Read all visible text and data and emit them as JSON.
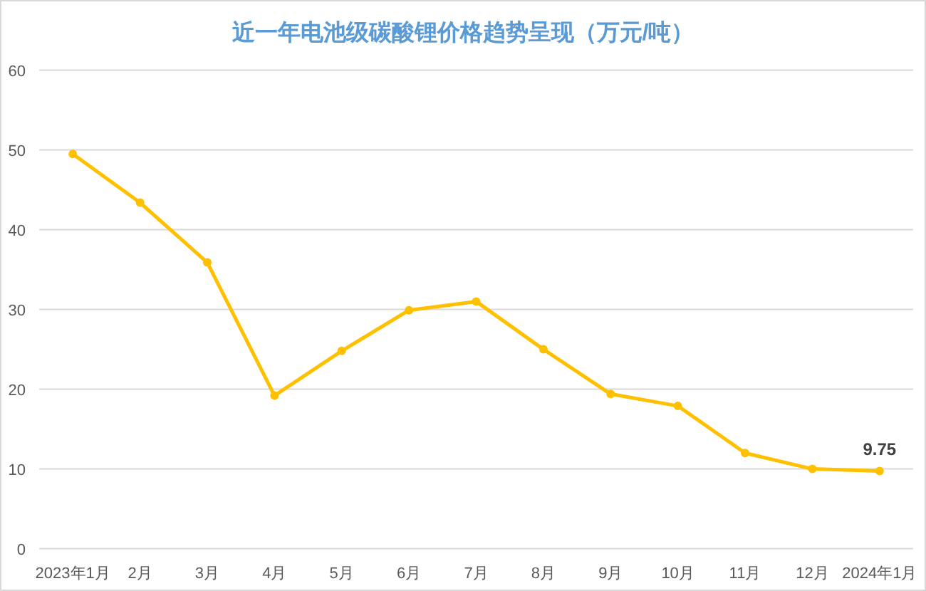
{
  "chart_data": {
    "type": "line",
    "title": "近一年电池级碳酸锂价格趋势呈现（万元/吨）",
    "categories": [
      "2023年1月",
      "2月",
      "3月",
      "4月",
      "5月",
      "6月",
      "7月",
      "8月",
      "9月",
      "10月",
      "11月",
      "12月",
      "2024年1月"
    ],
    "values": [
      49.5,
      43.4,
      35.9,
      19.2,
      24.8,
      29.9,
      31.0,
      25.0,
      19.4,
      17.9,
      12.0,
      10.0,
      9.75
    ],
    "value_labels": [
      null,
      null,
      null,
      null,
      null,
      null,
      null,
      null,
      null,
      null,
      null,
      null,
      "9.75"
    ],
    "color": "#ffc000",
    "ylim": [
      0,
      60
    ],
    "yticks": [
      0,
      10,
      20,
      30,
      40,
      50,
      60
    ],
    "grid": "y",
    "marker": "circle",
    "line_style": "solid"
  }
}
